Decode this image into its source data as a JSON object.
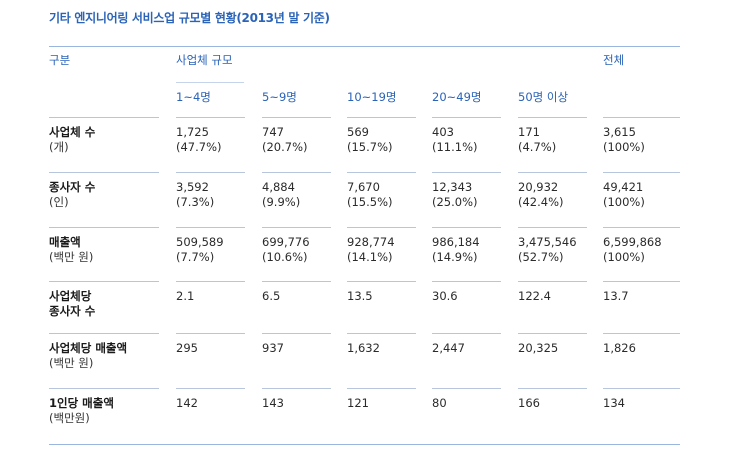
{
  "title": "기타 엔지니어링 서비스업 규모별 현황(2013년 말 기준)",
  "header": {
    "category": "구분",
    "size_group": "사업체 규모",
    "total": "전체",
    "columns": [
      "1~4명",
      "5~9명",
      "10~19명",
      "20~49명",
      "50명 이상"
    ]
  },
  "rows": [
    {
      "label": "사업체 수",
      "sub": "(개)",
      "cells": [
        [
          "1,725",
          "(47.7%)"
        ],
        [
          "747",
          "(20.7%)"
        ],
        [
          "569",
          "(15.7%)"
        ],
        [
          "403",
          "(11.1%)"
        ],
        [
          "171",
          "(4.7%)"
        ],
        [
          "3,615",
          "(100%)"
        ]
      ]
    },
    {
      "label": "종사자 수",
      "sub": "(인)",
      "cells": [
        [
          "3,592",
          "(7.3%)"
        ],
        [
          "4,884",
          "(9.9%)"
        ],
        [
          "7,670",
          "(15.5%)"
        ],
        [
          "12,343",
          "(25.0%)"
        ],
        [
          "20,932",
          "(42.4%)"
        ],
        [
          "49,421",
          "(100%)"
        ]
      ]
    },
    {
      "label": "매출액",
      "sub": "(백만 원)",
      "cells": [
        [
          "509,589",
          "(7.7%)"
        ],
        [
          "699,776",
          "(10.6%)"
        ],
        [
          "928,774",
          "(14.1%)"
        ],
        [
          "986,184",
          "(14.9%)"
        ],
        [
          "3,475,546",
          "(52.7%)"
        ],
        [
          "6,599,868",
          "(100%)"
        ]
      ]
    },
    {
      "label": "사업체당",
      "sub": "종사자 수",
      "sub_bold": true,
      "cells": [
        [
          "2.1",
          ""
        ],
        [
          "6.5",
          ""
        ],
        [
          "13.5",
          ""
        ],
        [
          "30.6",
          ""
        ],
        [
          "122.4",
          ""
        ],
        [
          "13.7",
          ""
        ]
      ]
    },
    {
      "label": "사업체당 매출액",
      "sub": "(백만 원)",
      "cells": [
        [
          "295",
          ""
        ],
        [
          "937",
          ""
        ],
        [
          "1,632",
          ""
        ],
        [
          "2,447",
          ""
        ],
        [
          "20,325",
          ""
        ],
        [
          "1,826",
          ""
        ]
      ]
    },
    {
      "label": "1인당 매출액",
      "sub": "(백만원)",
      "cells": [
        [
          "142",
          ""
        ],
        [
          "143",
          ""
        ],
        [
          "121",
          ""
        ],
        [
          "80",
          ""
        ],
        [
          "166",
          ""
        ],
        [
          "134",
          ""
        ]
      ]
    }
  ]
}
